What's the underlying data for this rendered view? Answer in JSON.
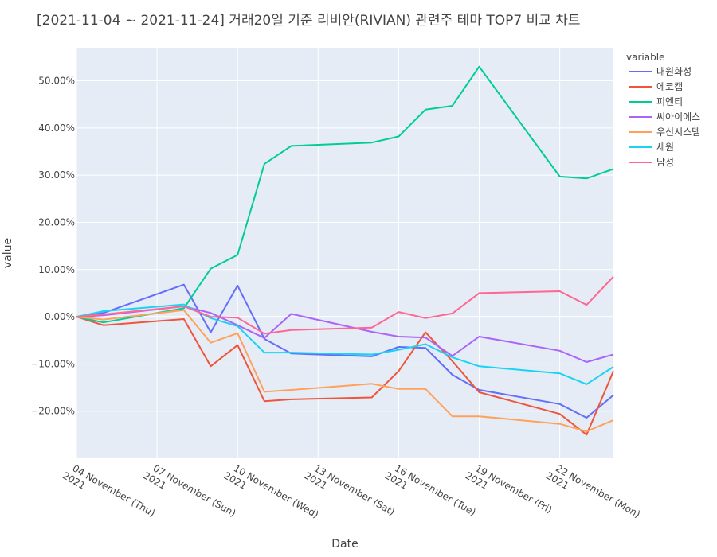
{
  "title": "[2021-11-04 ~ 2021-11-24] 거래20일 기준 리비안(RIVIAN) 관련주 테마 TOP7 비교 차트",
  "chart_data": {
    "type": "line",
    "xlabel": "Date",
    "ylabel": "value",
    "legend_title": "variable",
    "legend_position": "right",
    "grid": true,
    "background": "#E5ECF6",
    "ylim": [
      -30,
      57
    ],
    "xlim": [
      "2021-11-04",
      "2021-11-24"
    ],
    "x_ticks": [
      {
        "date": "2021-11-04",
        "line1": "04 November (Thu)",
        "line2": "2021"
      },
      {
        "date": "2021-11-07",
        "line1": "07 November (Sun)",
        "line2": "2021"
      },
      {
        "date": "2021-11-10",
        "line1": "10 November (Wed)",
        "line2": "2021"
      },
      {
        "date": "2021-11-13",
        "line1": "13 November (Sat)",
        "line2": "2021"
      },
      {
        "date": "2021-11-16",
        "line1": "16 November (Tue)",
        "line2": "2021"
      },
      {
        "date": "2021-11-19",
        "line1": "19 November (Fri)",
        "line2": "2021"
      },
      {
        "date": "2021-11-22",
        "line1": "22 November (Mon)",
        "line2": "2021"
      }
    ],
    "y_ticks": [
      {
        "value": 50,
        "label": "50.00%"
      },
      {
        "value": 40,
        "label": "40.00%"
      },
      {
        "value": 30,
        "label": "30.00%"
      },
      {
        "value": 20,
        "label": "20.00%"
      },
      {
        "value": 10,
        "label": "10.00%"
      },
      {
        "value": 0,
        "label": "0.00%"
      },
      {
        "value": -10,
        "label": "−10.00%"
      },
      {
        "value": -20,
        "label": "−20.00%"
      }
    ],
    "x": [
      "2021-11-04",
      "2021-11-05",
      "2021-11-08",
      "2021-11-09",
      "2021-11-10",
      "2021-11-11",
      "2021-11-12",
      "2021-11-15",
      "2021-11-16",
      "2021-11-17",
      "2021-11-18",
      "2021-11-19",
      "2021-11-22",
      "2021-11-23",
      "2021-11-24"
    ],
    "series": [
      {
        "name": "대원화성",
        "color": "#636EFA",
        "values": [
          0,
          0.8,
          6.8,
          -3.3,
          6.6,
          -4.7,
          -7.8,
          -8.4,
          -6.4,
          -6.6,
          -12.3,
          -15.5,
          -18.5,
          -21.4,
          -16.6
        ]
      },
      {
        "name": "에코캡",
        "color": "#EF553B",
        "values": [
          0,
          -1.8,
          -0.5,
          -10.5,
          -6.0,
          -17.9,
          -17.5,
          -17.1,
          -11.5,
          -3.3,
          -9.4,
          -16.0,
          -20.6,
          -25.0,
          -11.5
        ]
      },
      {
        "name": "피엔티",
        "color": "#00CC96",
        "values": [
          0,
          -1.2,
          1.8,
          10.2,
          13.1,
          32.4,
          36.2,
          36.9,
          38.2,
          43.9,
          44.7,
          53.0,
          29.7,
          29.3,
          31.3
        ]
      },
      {
        "name": "씨아이에스",
        "color": "#AB63FA",
        "values": [
          0,
          0.3,
          2.2,
          0.8,
          -1.8,
          -4.5,
          0.6,
          -3.2,
          -4.2,
          -4.4,
          -8.3,
          -4.2,
          -7.2,
          -9.6,
          -8.0
        ]
      },
      {
        "name": "우신시스템",
        "color": "#FFA15A",
        "values": [
          0,
          -0.6,
          1.4,
          -5.5,
          -3.5,
          -15.9,
          -15.5,
          -14.2,
          -15.3,
          -15.3,
          -21.1,
          -21.1,
          -22.7,
          -24.3,
          -21.9
        ]
      },
      {
        "name": "세원",
        "color": "#19D3F3",
        "values": [
          0,
          1.2,
          2.6,
          -0.3,
          -2.0,
          -7.6,
          -7.6,
          -8.0,
          -7.0,
          -5.8,
          -8.6,
          -10.5,
          -12.0,
          -14.3,
          -10.6
        ]
      },
      {
        "name": "남성",
        "color": "#FF6692",
        "values": [
          0,
          0.5,
          2.2,
          0.0,
          -0.2,
          -3.6,
          -2.8,
          -2.3,
          1.0,
          -0.3,
          0.7,
          5.0,
          5.4,
          2.5,
          8.5
        ]
      }
    ]
  }
}
